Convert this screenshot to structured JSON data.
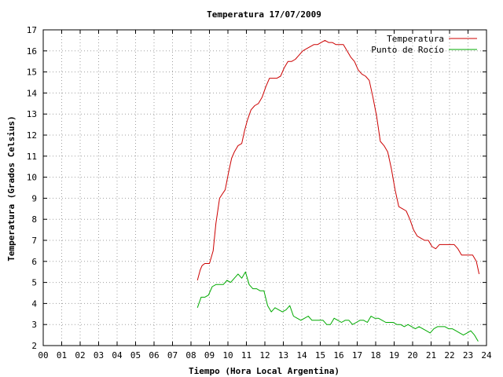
{
  "chart_data": {
    "type": "line",
    "title": "Temperatura 17/07/2009",
    "xlabel": "Tiempo (Hora Local Argentina)",
    "ylabel": "Temperatura (Grados Celsius)",
    "xlim": [
      0,
      24
    ],
    "ylim": [
      2,
      17
    ],
    "x_ticks": [
      "00",
      "01",
      "02",
      "03",
      "04",
      "05",
      "06",
      "07",
      "08",
      "09",
      "10",
      "11",
      "12",
      "13",
      "14",
      "15",
      "16",
      "17",
      "18",
      "19",
      "20",
      "21",
      "22",
      "23",
      "24"
    ],
    "y_ticks": [
      "2",
      "3",
      "4",
      "5",
      "6",
      "7",
      "8",
      "9",
      "10",
      "11",
      "12",
      "13",
      "14",
      "15",
      "16",
      "17"
    ],
    "grid": true,
    "legend_position": "top-right",
    "series": [
      {
        "name": "Temperatura",
        "color": "#cc0000",
        "x": [
          8.35,
          8.5,
          8.6,
          8.75,
          9.0,
          9.2,
          9.35,
          9.55,
          9.7,
          9.85,
          10.05,
          10.2,
          10.35,
          10.55,
          10.75,
          10.9,
          11.05,
          11.25,
          11.45,
          11.65,
          11.85,
          12.05,
          12.25,
          12.45,
          12.65,
          12.85,
          13.05,
          13.25,
          13.45,
          13.65,
          13.85,
          14.05,
          14.25,
          14.45,
          14.65,
          14.85,
          15.05,
          15.25,
          15.45,
          15.65,
          15.85,
          16.05,
          16.25,
          16.45,
          16.65,
          16.85,
          17.05,
          17.25,
          17.45,
          17.65,
          17.85,
          18.05,
          18.25,
          18.45,
          18.65,
          18.85,
          19.05,
          19.25,
          19.45,
          19.65,
          19.85,
          20.05,
          20.25,
          20.45,
          20.65,
          20.85,
          21.05,
          21.25,
          21.45,
          21.65,
          21.85,
          22.05,
          22.25,
          22.45,
          22.65,
          22.85,
          23.05,
          23.25,
          23.45,
          23.6
        ],
        "values": [
          5.1,
          5.6,
          5.8,
          5.9,
          5.9,
          6.5,
          7.8,
          9.0,
          9.2,
          9.4,
          10.3,
          10.9,
          11.2,
          11.5,
          11.6,
          12.2,
          12.7,
          13.2,
          13.4,
          13.5,
          13.8,
          14.3,
          14.7,
          14.7,
          14.7,
          14.8,
          15.2,
          15.5,
          15.5,
          15.6,
          15.8,
          16.0,
          16.1,
          16.2,
          16.3,
          16.3,
          16.4,
          16.5,
          16.4,
          16.4,
          16.3,
          16.3,
          16.3,
          16.0,
          15.7,
          15.5,
          15.1,
          14.9,
          14.8,
          14.6,
          13.8,
          12.9,
          11.7,
          11.5,
          11.2,
          10.4,
          9.4,
          8.6,
          8.5,
          8.4,
          8.0,
          7.5,
          7.2,
          7.1,
          7.0,
          7.0,
          6.7,
          6.6,
          6.8,
          6.8,
          6.8,
          6.8,
          6.8,
          6.6,
          6.3,
          6.3,
          6.3,
          6.3,
          6.0,
          5.4
        ]
      },
      {
        "name": "Punto de Rocío",
        "color": "#00aa00",
        "x": [
          8.35,
          8.55,
          8.75,
          8.95,
          9.15,
          9.35,
          9.55,
          9.75,
          9.95,
          10.15,
          10.35,
          10.55,
          10.75,
          10.95,
          11.15,
          11.35,
          11.55,
          11.75,
          11.95,
          12.15,
          12.35,
          12.55,
          12.75,
          12.95,
          13.15,
          13.35,
          13.55,
          13.75,
          13.95,
          14.15,
          14.35,
          14.55,
          14.75,
          14.95,
          15.15,
          15.35,
          15.55,
          15.75,
          15.95,
          16.15,
          16.35,
          16.55,
          16.75,
          16.95,
          17.15,
          17.35,
          17.55,
          17.75,
          17.95,
          18.15,
          18.35,
          18.55,
          18.75,
          18.95,
          19.15,
          19.35,
          19.55,
          19.75,
          19.95,
          20.15,
          20.35,
          20.55,
          20.75,
          20.95,
          21.15,
          21.35,
          21.55,
          21.75,
          21.95,
          22.15,
          22.35,
          22.55,
          22.75,
          22.95,
          23.15,
          23.35,
          23.55
        ],
        "values": [
          3.8,
          4.3,
          4.3,
          4.4,
          4.8,
          4.9,
          4.9,
          4.9,
          5.1,
          5.0,
          5.2,
          5.4,
          5.2,
          5.5,
          4.9,
          4.7,
          4.7,
          4.6,
          4.6,
          3.9,
          3.6,
          3.8,
          3.7,
          3.6,
          3.7,
          3.9,
          3.4,
          3.3,
          3.2,
          3.3,
          3.4,
          3.2,
          3.2,
          3.2,
          3.2,
          3.0,
          3.0,
          3.3,
          3.2,
          3.1,
          3.2,
          3.2,
          3.0,
          3.1,
          3.2,
          3.2,
          3.1,
          3.4,
          3.3,
          3.3,
          3.2,
          3.1,
          3.1,
          3.1,
          3.0,
          3.0,
          2.9,
          3.0,
          2.9,
          2.8,
          2.9,
          2.8,
          2.7,
          2.6,
          2.8,
          2.9,
          2.9,
          2.9,
          2.8,
          2.8,
          2.7,
          2.6,
          2.5,
          2.6,
          2.7,
          2.5,
          2.2
        ]
      }
    ]
  }
}
